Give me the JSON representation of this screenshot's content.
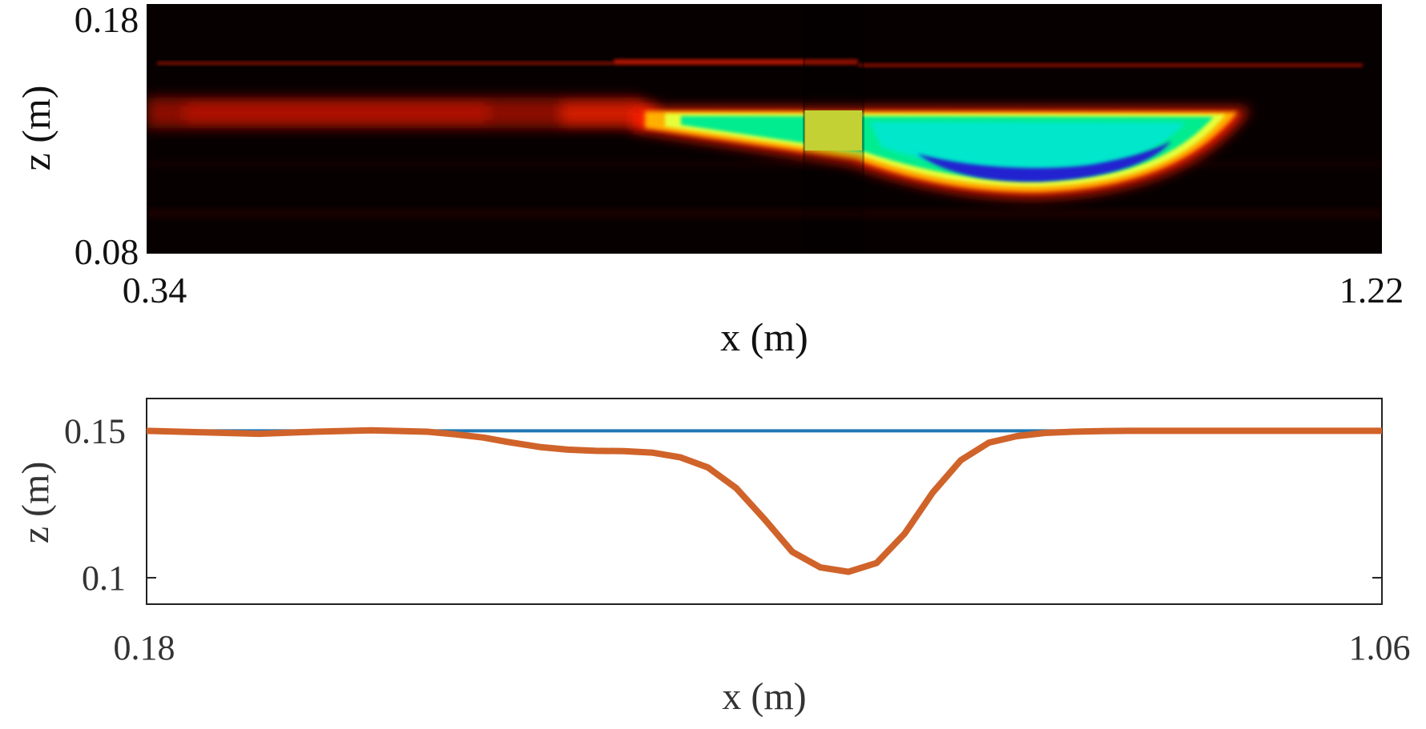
{
  "chart_data": [
    {
      "type": "heatmap",
      "xlabel": "x (m)",
      "ylabel": "z (m)",
      "xlim": [
        0.34,
        1.22
      ],
      "ylim": [
        0.08,
        0.18
      ],
      "x_tick_labels": [
        "0.34",
        "1.22"
      ],
      "y_tick_labels": [
        "0.18",
        "0.08"
      ],
      "colormap": [
        "#000000",
        "#7a0000",
        "#ff1a00",
        "#ffd400",
        "#e8ff3a",
        "#00f0a0",
        "#00e8e0",
        "#2a2ad8"
      ],
      "features": {
        "surface_band_z": 0.14,
        "surface_band_x": [
          0.34,
          0.71
        ],
        "intense_lens": {
          "x": [
            0.71,
            1.17
          ],
          "z_top": 0.134,
          "z_bottom_min": 0.105,
          "z_bottom_x": 0.99
        },
        "saturated_strip_x": [
          0.8,
          0.84
        ]
      }
    },
    {
      "type": "line",
      "xlabel": "x (m)",
      "ylabel": "z (m)",
      "xlim": [
        0.18,
        1.06
      ],
      "ylim": [
        0.091,
        0.161
      ],
      "x_tick_labels": [
        "0.18",
        "1.06"
      ],
      "y_ticks": [
        0.15,
        0.1
      ],
      "y_tick_labels": [
        "0.15",
        "0.1"
      ],
      "series": [
        {
          "color": "#1f77b4",
          "x": [
            0.18,
            1.06
          ],
          "z": [
            0.15,
            0.15
          ]
        },
        {
          "color": "#d0632a",
          "x": [
            0.18,
            0.22,
            0.26,
            0.3,
            0.34,
            0.38,
            0.4,
            0.42,
            0.44,
            0.46,
            0.48,
            0.5,
            0.52,
            0.54,
            0.56,
            0.58,
            0.6,
            0.62,
            0.64,
            0.66,
            0.68,
            0.7,
            0.72,
            0.74,
            0.76,
            0.78,
            0.8,
            0.82,
            0.84,
            0.86,
            0.88,
            0.9,
            0.92,
            0.94,
            0.96,
            0.98,
            1.0,
            1.02,
            1.04,
            1.06
          ],
          "z": [
            0.15,
            0.1495,
            0.149,
            0.1497,
            0.1502,
            0.1497,
            0.1488,
            0.1477,
            0.146,
            0.1445,
            0.1436,
            0.1432,
            0.1431,
            0.1426,
            0.141,
            0.1375,
            0.1305,
            0.12,
            0.1088,
            0.1035,
            0.102,
            0.105,
            0.115,
            0.129,
            0.14,
            0.146,
            0.1482,
            0.1493,
            0.1497,
            0.1499,
            0.15,
            0.15,
            0.15,
            0.15,
            0.15,
            0.15,
            0.15,
            0.15,
            0.15,
            0.15
          ]
        }
      ]
    }
  ]
}
